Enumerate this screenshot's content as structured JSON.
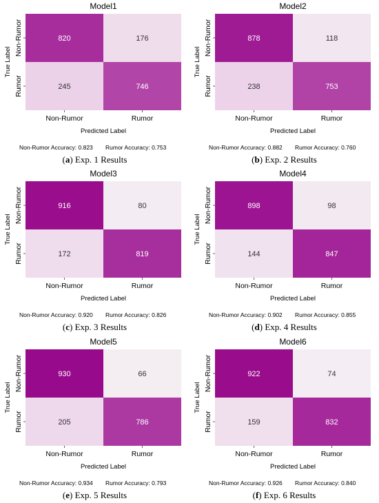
{
  "chart_data": [
    {
      "type": "heatmap",
      "title": "Model1",
      "xlabel": "Predicted Label",
      "ylabel": "True Label",
      "x_categories": [
        "Non-Rumor",
        "Rumor"
      ],
      "y_categories": [
        "Non-Rumor",
        "Rumor"
      ],
      "values": [
        [
          820,
          176
        ],
        [
          245,
          746
        ]
      ],
      "accuracy_text": [
        "Non-Rumor Accuracy: 0.823",
        "Rumor Accuracy: 0.753"
      ],
      "caption_letter": "(a)",
      "caption_text": "Exp. 1 Results"
    },
    {
      "type": "heatmap",
      "title": "Model2",
      "xlabel": "Predicted Label",
      "ylabel": "True Label",
      "x_categories": [
        "Non-Rumor",
        "Rumor"
      ],
      "y_categories": [
        "Non-Rumor",
        "Rumor"
      ],
      "values": [
        [
          878,
          118
        ],
        [
          238,
          753
        ]
      ],
      "accuracy_text": [
        "Non-Rumor Accuracy: 0.882",
        "Rumor Accuracy: 0.760"
      ],
      "caption_letter": "(b)",
      "caption_text": "Exp. 2 Results"
    },
    {
      "type": "heatmap",
      "title": "Model3",
      "xlabel": "Predicted Label",
      "ylabel": "True Label",
      "x_categories": [
        "Non-Rumor",
        "Rumor"
      ],
      "y_categories": [
        "Non-Rumor",
        "Rumor"
      ],
      "values": [
        [
          916,
          80
        ],
        [
          172,
          819
        ]
      ],
      "accuracy_text": [
        "Non-Rumor Accuracy: 0.920",
        "Rumor Accuracy: 0.826"
      ],
      "caption_letter": "(c)",
      "caption_text": "Exp. 3 Results"
    },
    {
      "type": "heatmap",
      "title": "Model4",
      "xlabel": "Predicted Label",
      "ylabel": "True Label",
      "x_categories": [
        "Non-Rumor",
        "Rumor"
      ],
      "y_categories": [
        "Non-Rumor",
        "Rumor"
      ],
      "values": [
        [
          898,
          98
        ],
        [
          144,
          847
        ]
      ],
      "accuracy_text": [
        "Non-Rumor Accuracy: 0.902",
        "Rumor Accuracy: 0.855"
      ],
      "caption_letter": "(d)",
      "caption_text": "Exp. 4 Results"
    },
    {
      "type": "heatmap",
      "title": "Model5",
      "xlabel": "Predicted Label",
      "ylabel": "True Label",
      "x_categories": [
        "Non-Rumor",
        "Rumor"
      ],
      "y_categories": [
        "Non-Rumor",
        "Rumor"
      ],
      "values": [
        [
          930,
          66
        ],
        [
          205,
          786
        ]
      ],
      "accuracy_text": [
        "Non-Rumor Accuracy: 0.934",
        "Rumor Accuracy: 0.793"
      ],
      "caption_letter": "(e)",
      "caption_text": "Exp. 5 Results"
    },
    {
      "type": "heatmap",
      "title": "Model6",
      "xlabel": "Predicted Label",
      "ylabel": "True Label",
      "x_categories": [
        "Non-Rumor",
        "Rumor"
      ],
      "y_categories": [
        "Non-Rumor",
        "Rumor"
      ],
      "values": [
        [
          922,
          74
        ],
        [
          159,
          832
        ]
      ],
      "accuracy_text": [
        "Non-Rumor Accuracy: 0.926",
        "Rumor Accuracy: 0.840"
      ],
      "caption_letter": "(f)",
      "caption_text": "Exp. 6 Results"
    }
  ],
  "colors": {
    "low": "#f4eef3",
    "high": "#980a8c",
    "text_on_dark": "#ffffff",
    "text_on_light": "#333333"
  }
}
